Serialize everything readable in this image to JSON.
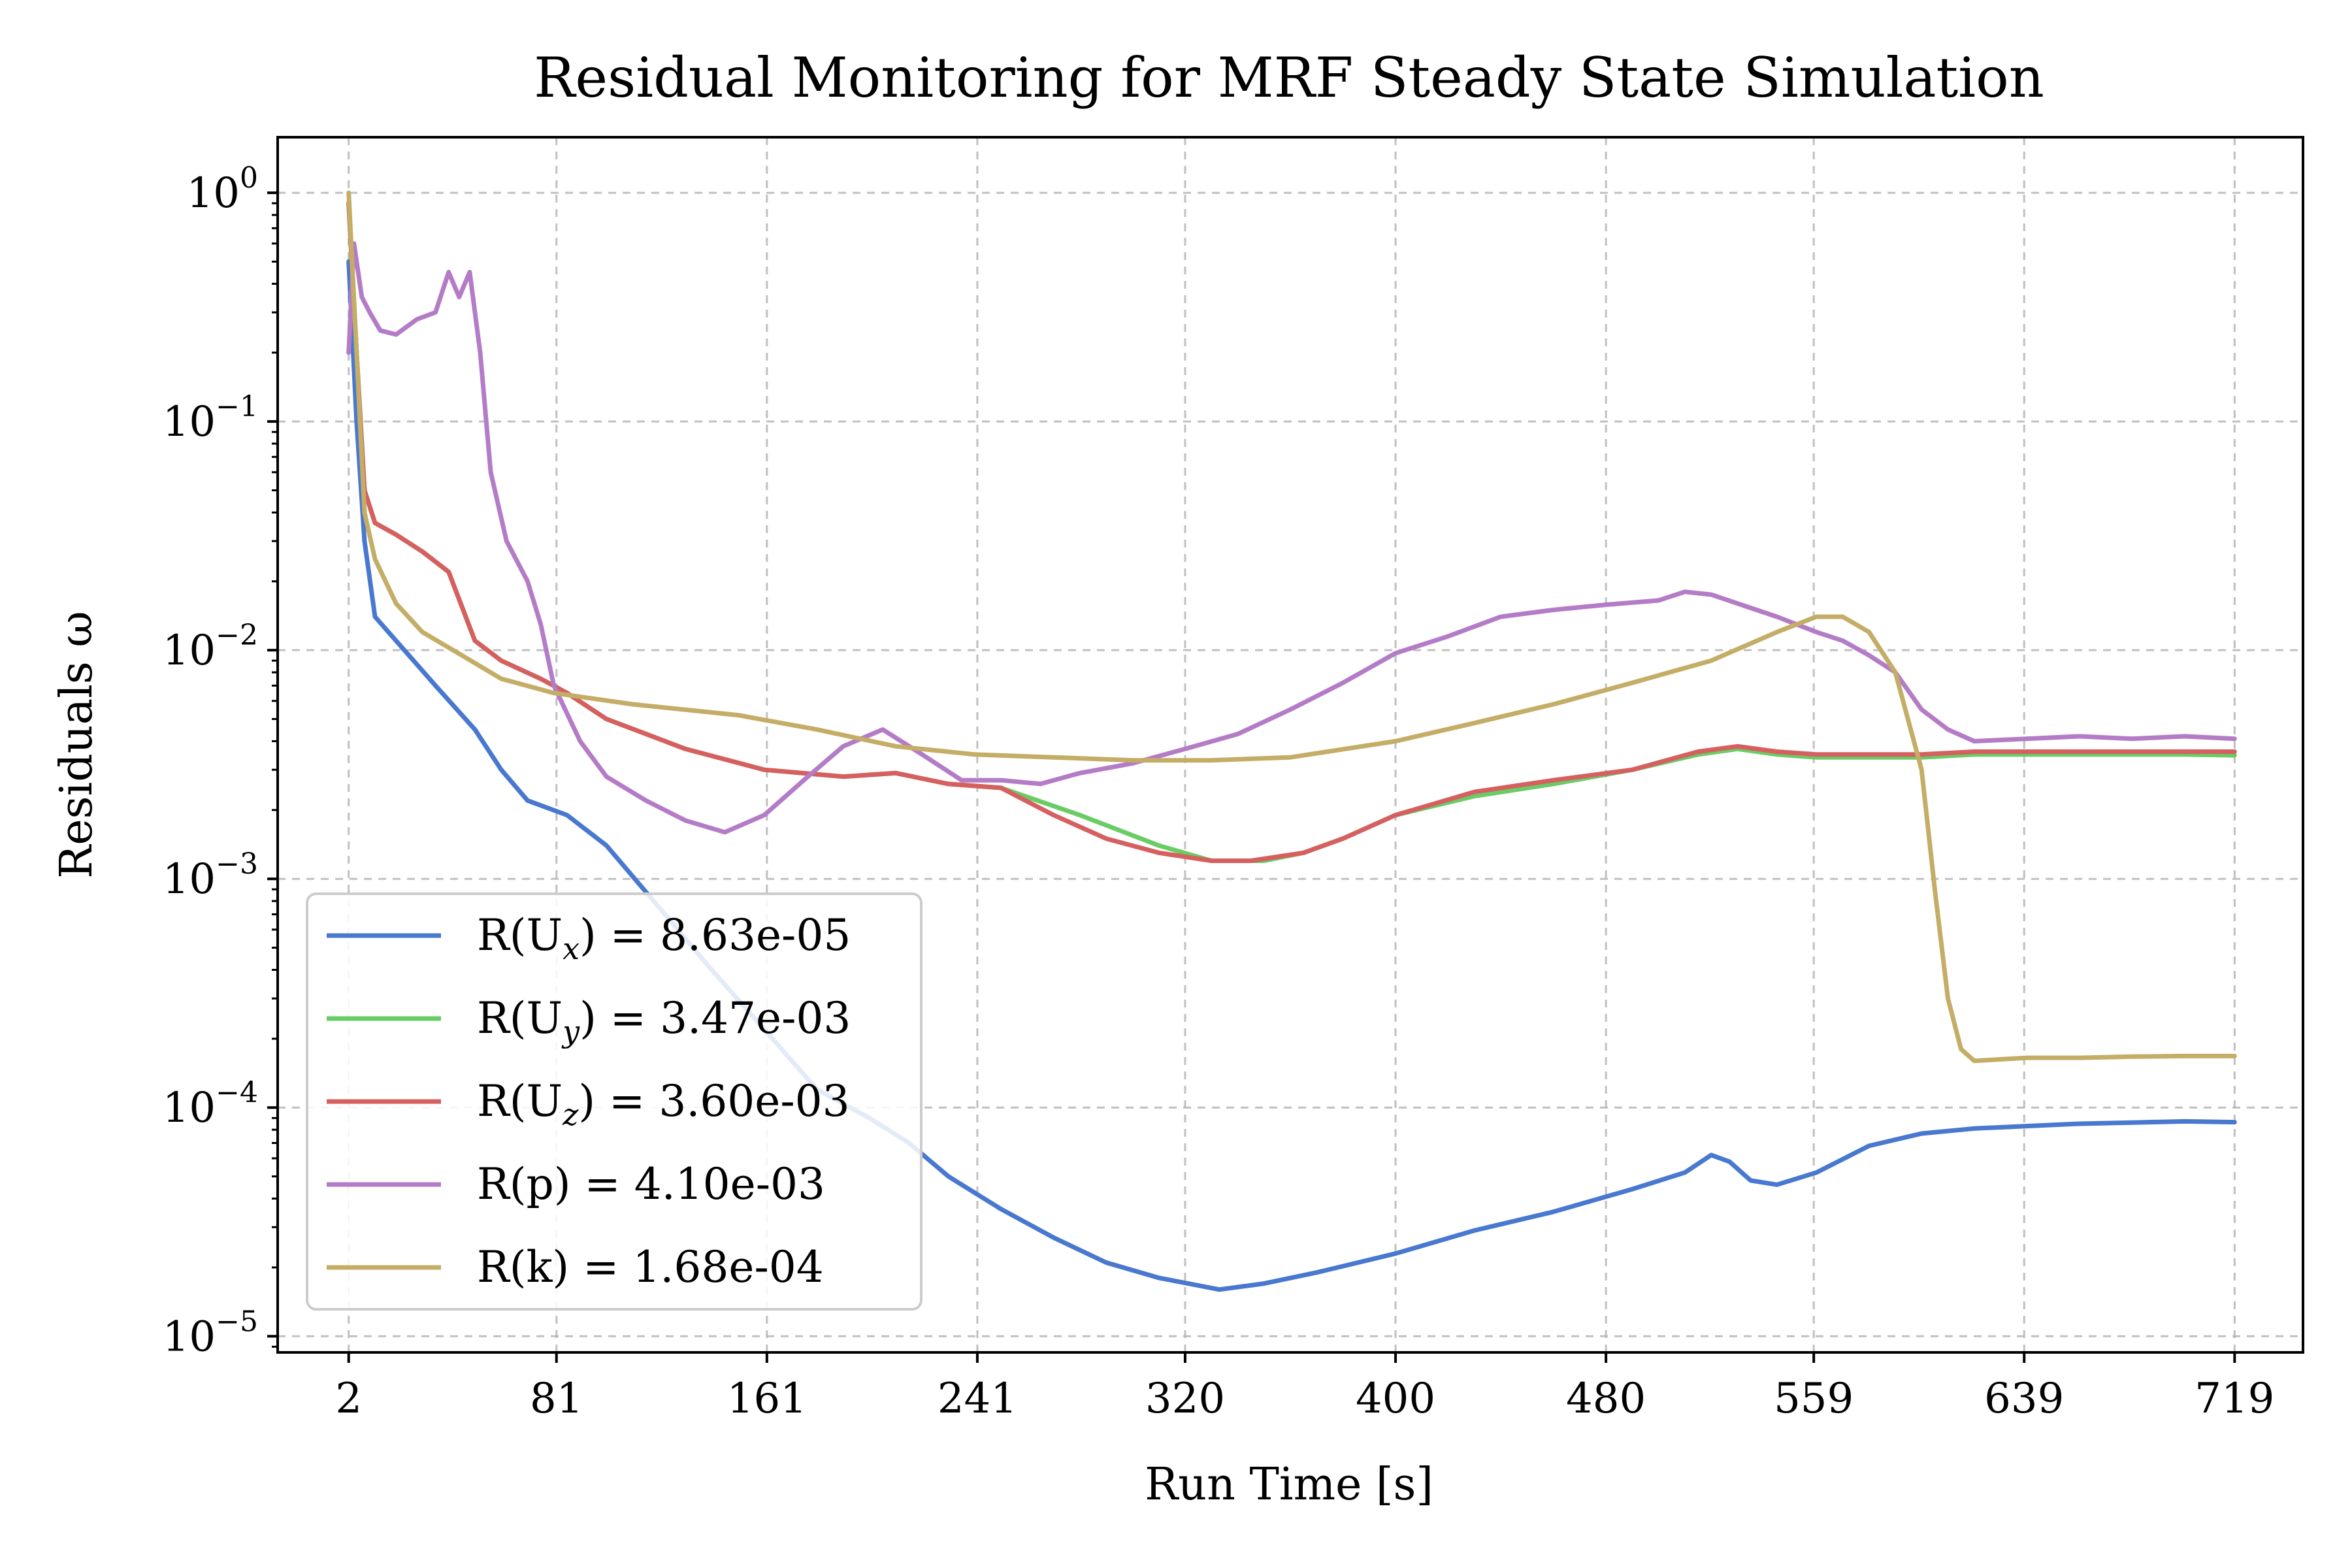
{
  "chart_data": {
    "type": "line",
    "title": "Residual Monitoring for MRF Steady State Simulation",
    "xlabel": "Run Time [s]",
    "ylabel": "Residuals ω",
    "yscale": "log",
    "xlim": [
      -25,
      745
    ],
    "ylim": [
      8.5e-06,
      1.75
    ],
    "x_ticks": [
      2,
      81,
      161,
      241,
      320,
      400,
      480,
      559,
      639,
      719
    ],
    "y_ticks": [
      {
        "value": 1,
        "base": "10",
        "exp": "0"
      },
      {
        "value": 0.1,
        "base": "10",
        "exp": "−1"
      },
      {
        "value": 0.01,
        "base": "10",
        "exp": "−2"
      },
      {
        "value": 0.001,
        "base": "10",
        "exp": "−3"
      },
      {
        "value": 0.0001,
        "base": "10",
        "exp": "−4"
      },
      {
        "value": 1e-05,
        "base": "10",
        "exp": "−5"
      }
    ],
    "grid": true,
    "legend_position": "lower-left",
    "series": [
      {
        "name": "R(U_x) = 8.63e-05",
        "legend_parts": {
          "pre": "R(U",
          "sub": "x",
          "post": ") = 8.63e-05"
        },
        "color": "#4878cf",
        "points": [
          [
            2,
            0.5
          ],
          [
            5,
            0.1
          ],
          [
            8,
            0.03
          ],
          [
            12,
            0.014
          ],
          [
            20,
            0.011
          ],
          [
            35,
            0.007
          ],
          [
            50,
            0.0045
          ],
          [
            60,
            0.003
          ],
          [
            70,
            0.0022
          ],
          [
            85,
            0.0019
          ],
          [
            100,
            0.0014
          ],
          [
            120,
            0.00075
          ],
          [
            140,
            0.0004
          ],
          [
            160,
            0.00022
          ],
          [
            180,
            0.00012
          ],
          [
            200,
            9e-05
          ],
          [
            215,
            7e-05
          ],
          [
            230,
            5e-05
          ],
          [
            250,
            3.6e-05
          ],
          [
            270,
            2.7e-05
          ],
          [
            290,
            2.1e-05
          ],
          [
            310,
            1.8e-05
          ],
          [
            333,
            1.6e-05
          ],
          [
            350,
            1.7e-05
          ],
          [
            370,
            1.9e-05
          ],
          [
            400,
            2.3e-05
          ],
          [
            430,
            2.9e-05
          ],
          [
            460,
            3.5e-05
          ],
          [
            490,
            4.4e-05
          ],
          [
            510,
            5.2e-05
          ],
          [
            520,
            6.2e-05
          ],
          [
            527,
            5.8e-05
          ],
          [
            535,
            4.8e-05
          ],
          [
            545,
            4.6e-05
          ],
          [
            560,
            5.2e-05
          ],
          [
            580,
            6.8e-05
          ],
          [
            600,
            7.7e-05
          ],
          [
            620,
            8.1e-05
          ],
          [
            640,
            8.3e-05
          ],
          [
            660,
            8.5e-05
          ],
          [
            680,
            8.6e-05
          ],
          [
            700,
            8.7e-05
          ],
          [
            719,
            8.63e-05
          ]
        ]
      },
      {
        "name": "R(U_y) = 3.47e-03",
        "legend_parts": {
          "pre": "R(U",
          "sub": "y",
          "post": ") = 3.47e-03"
        },
        "color": "#6acc65",
        "points": [
          [
            2,
            0.9
          ],
          [
            5,
            0.2
          ],
          [
            8,
            0.05
          ],
          [
            12,
            0.036
          ],
          [
            20,
            0.032
          ],
          [
            30,
            0.027
          ],
          [
            40,
            0.022
          ],
          [
            50,
            0.011
          ],
          [
            60,
            0.009
          ],
          [
            75,
            0.0075
          ],
          [
            85,
            0.0065
          ],
          [
            100,
            0.005
          ],
          [
            130,
            0.0037
          ],
          [
            160,
            0.003
          ],
          [
            190,
            0.0028
          ],
          [
            210,
            0.0029
          ],
          [
            230,
            0.0026
          ],
          [
            250,
            0.0025
          ],
          [
            280,
            0.0019
          ],
          [
            310,
            0.0014
          ],
          [
            330,
            0.0012
          ],
          [
            350,
            0.0012
          ],
          [
            365,
            0.0013
          ],
          [
            380,
            0.0015
          ],
          [
            400,
            0.0019
          ],
          [
            430,
            0.0023
          ],
          [
            460,
            0.0026
          ],
          [
            490,
            0.003
          ],
          [
            515,
            0.0035
          ],
          [
            530,
            0.0037
          ],
          [
            545,
            0.0035
          ],
          [
            560,
            0.0034
          ],
          [
            580,
            0.0034
          ],
          [
            600,
            0.0034
          ],
          [
            620,
            0.0035
          ],
          [
            640,
            0.0035
          ],
          [
            660,
            0.0035
          ],
          [
            680,
            0.0035
          ],
          [
            700,
            0.0035
          ],
          [
            719,
            0.00347
          ]
        ]
      },
      {
        "name": "R(U_z) = 3.60e-03",
        "legend_parts": {
          "pre": "R(U",
          "sub": "z",
          "post": ") = 3.60e-03"
        },
        "color": "#d65f5f",
        "points": [
          [
            2,
            0.9
          ],
          [
            5,
            0.2
          ],
          [
            8,
            0.05
          ],
          [
            12,
            0.036
          ],
          [
            20,
            0.032
          ],
          [
            30,
            0.027
          ],
          [
            40,
            0.022
          ],
          [
            50,
            0.011
          ],
          [
            60,
            0.009
          ],
          [
            75,
            0.0075
          ],
          [
            85,
            0.0065
          ],
          [
            100,
            0.005
          ],
          [
            130,
            0.0037
          ],
          [
            160,
            0.003
          ],
          [
            190,
            0.0028
          ],
          [
            210,
            0.0029
          ],
          [
            230,
            0.0026
          ],
          [
            250,
            0.0025
          ],
          [
            270,
            0.0019
          ],
          [
            290,
            0.0015
          ],
          [
            310,
            0.0013
          ],
          [
            330,
            0.0012
          ],
          [
            345,
            0.0012
          ],
          [
            365,
            0.0013
          ],
          [
            380,
            0.0015
          ],
          [
            400,
            0.0019
          ],
          [
            430,
            0.0024
          ],
          [
            460,
            0.0027
          ],
          [
            490,
            0.003
          ],
          [
            515,
            0.0036
          ],
          [
            530,
            0.0038
          ],
          [
            545,
            0.0036
          ],
          [
            560,
            0.0035
          ],
          [
            580,
            0.0035
          ],
          [
            600,
            0.0035
          ],
          [
            620,
            0.0036
          ],
          [
            640,
            0.0036
          ],
          [
            660,
            0.0036
          ],
          [
            680,
            0.0036
          ],
          [
            700,
            0.0036
          ],
          [
            719,
            0.0036
          ]
        ]
      },
      {
        "name": "R(p) = 4.10e-03",
        "legend_parts": {
          "pre": "R(p) = 4.10e-03",
          "sub": "",
          "post": ""
        },
        "color": "#b47cc7",
        "points": [
          [
            2,
            0.2
          ],
          [
            4,
            0.6
          ],
          [
            7,
            0.35
          ],
          [
            10,
            0.3
          ],
          [
            14,
            0.25
          ],
          [
            20,
            0.24
          ],
          [
            28,
            0.28
          ],
          [
            35,
            0.3
          ],
          [
            40,
            0.45
          ],
          [
            44,
            0.35
          ],
          [
            48,
            0.45
          ],
          [
            52,
            0.2
          ],
          [
            56,
            0.06
          ],
          [
            62,
            0.03
          ],
          [
            70,
            0.02
          ],
          [
            75,
            0.013
          ],
          [
            80,
            0.007
          ],
          [
            90,
            0.004
          ],
          [
            100,
            0.0028
          ],
          [
            115,
            0.0022
          ],
          [
            130,
            0.0018
          ],
          [
            145,
            0.0016
          ],
          [
            160,
            0.0019
          ],
          [
            175,
            0.0027
          ],
          [
            190,
            0.0038
          ],
          [
            205,
            0.0045
          ],
          [
            220,
            0.0035
          ],
          [
            235,
            0.0027
          ],
          [
            250,
            0.0027
          ],
          [
            265,
            0.0026
          ],
          [
            280,
            0.0029
          ],
          [
            300,
            0.0032
          ],
          [
            320,
            0.0037
          ],
          [
            340,
            0.0043
          ],
          [
            360,
            0.0055
          ],
          [
            380,
            0.0072
          ],
          [
            400,
            0.0097
          ],
          [
            420,
            0.0115
          ],
          [
            440,
            0.014
          ],
          [
            460,
            0.015
          ],
          [
            480,
            0.0158
          ],
          [
            500,
            0.0165
          ],
          [
            510,
            0.018
          ],
          [
            520,
            0.0175
          ],
          [
            530,
            0.016
          ],
          [
            545,
            0.014
          ],
          [
            560,
            0.012
          ],
          [
            570,
            0.011
          ],
          [
            580,
            0.0095
          ],
          [
            590,
            0.008
          ],
          [
            600,
            0.0055
          ],
          [
            610,
            0.0045
          ],
          [
            620,
            0.004
          ],
          [
            640,
            0.0041
          ],
          [
            660,
            0.0042
          ],
          [
            680,
            0.0041
          ],
          [
            700,
            0.0042
          ],
          [
            719,
            0.0041
          ]
        ]
      },
      {
        "name": "R(k) = 1.68e-04",
        "legend_parts": {
          "pre": "R(k) = 1.68e-04",
          "sub": "",
          "post": ""
        },
        "color": "#c4ad66",
        "points": [
          [
            2,
            1.0
          ],
          [
            5,
            0.2
          ],
          [
            8,
            0.04
          ],
          [
            12,
            0.025
          ],
          [
            20,
            0.016
          ],
          [
            30,
            0.012
          ],
          [
            45,
            0.0095
          ],
          [
            60,
            0.0075
          ],
          [
            80,
            0.0065
          ],
          [
            110,
            0.0058
          ],
          [
            150,
            0.0052
          ],
          [
            180,
            0.0045
          ],
          [
            210,
            0.0038
          ],
          [
            240,
            0.0035
          ],
          [
            270,
            0.0034
          ],
          [
            300,
            0.0033
          ],
          [
            330,
            0.0033
          ],
          [
            360,
            0.0034
          ],
          [
            400,
            0.004
          ],
          [
            430,
            0.0048
          ],
          [
            460,
            0.0058
          ],
          [
            490,
            0.0072
          ],
          [
            520,
            0.009
          ],
          [
            545,
            0.012
          ],
          [
            560,
            0.014
          ],
          [
            570,
            0.014
          ],
          [
            580,
            0.012
          ],
          [
            590,
            0.008
          ],
          [
            600,
            0.003
          ],
          [
            605,
            0.0009
          ],
          [
            610,
            0.0003
          ],
          [
            615,
            0.00018
          ],
          [
            620,
            0.00016
          ],
          [
            640,
            0.000165
          ],
          [
            660,
            0.000165
          ],
          [
            680,
            0.000167
          ],
          [
            700,
            0.000168
          ],
          [
            719,
            0.000168
          ]
        ]
      }
    ]
  }
}
